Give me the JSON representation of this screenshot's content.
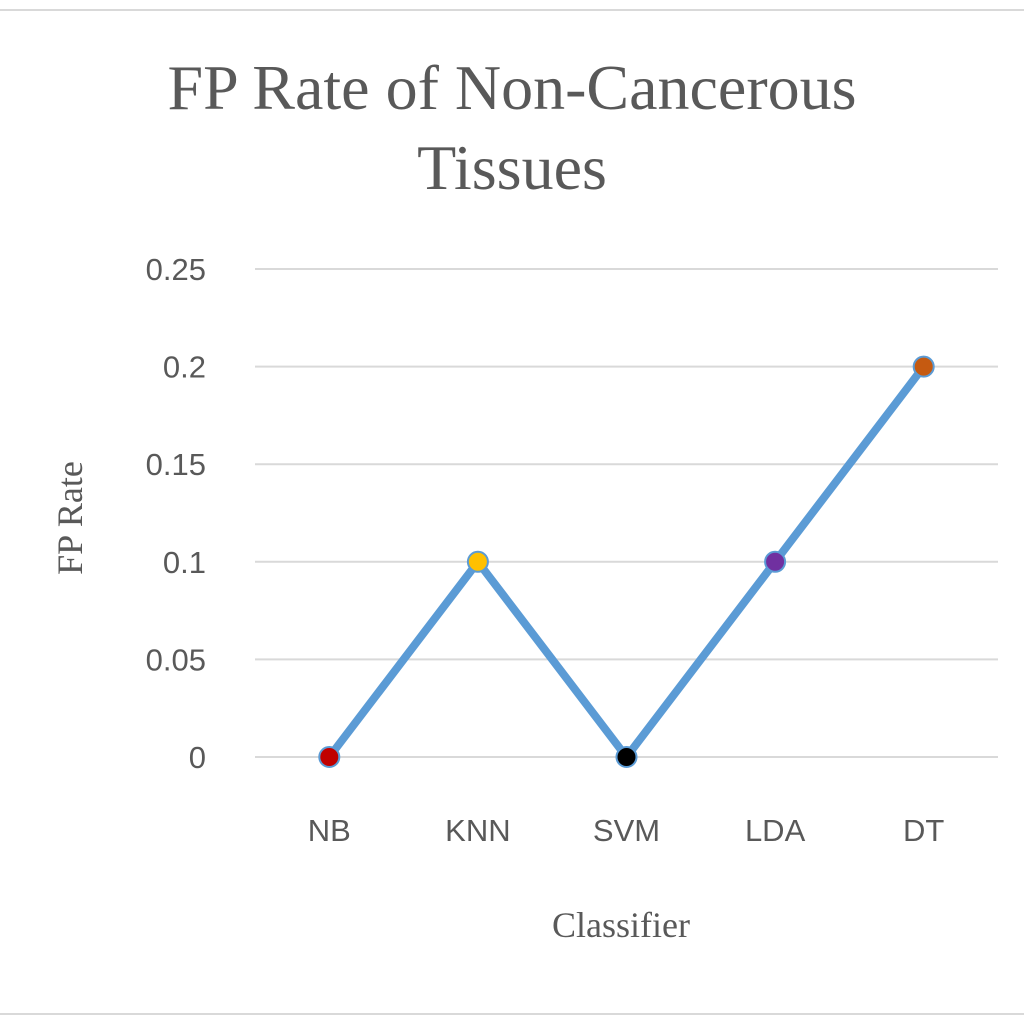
{
  "chart_data": {
    "type": "line",
    "title_lines": [
      "FP Rate of Non-Cancerous",
      "Tissues"
    ],
    "xlabel": "Classifier",
    "ylabel": "FP Rate",
    "categories": [
      "NB",
      "KNN",
      "SVM",
      "LDA",
      "DT"
    ],
    "series": [
      {
        "values": [
          0,
          0.1,
          0,
          0.1,
          0.2
        ]
      }
    ],
    "line_color": "#5b9bd5",
    "marker_colors": [
      "#c00000",
      "#ffc000",
      "#000000",
      "#7030a0",
      "#c55a11"
    ],
    "marker_outline": "#5b9bd5",
    "ylim": [
      0,
      0.25
    ],
    "yticks": [
      0,
      0.05,
      0.1,
      0.15,
      0.2,
      0.25
    ],
    "ytick_labels": [
      "0",
      "0.05",
      "0.1",
      "0.15",
      "0.2",
      "0.25"
    ],
    "grid": true,
    "grid_color": "#d9d9d9",
    "text_color": "#595959",
    "legend": false
  }
}
